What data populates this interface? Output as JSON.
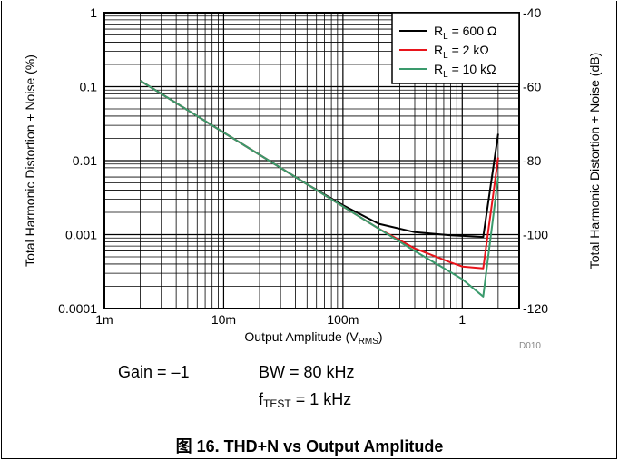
{
  "chart_data": {
    "type": "line",
    "title": "",
    "xlabel_main": "Output Amplitude (V",
    "xlabel_sub": "RMS",
    "xlabel_end": ")",
    "ylabel_left": "Total Harmonic Distortion + Noise (%)",
    "ylabel_right": "Total Harmonic Distortion + Noise (dB)",
    "x_scale": "log",
    "y_scale": "log",
    "xlim": [
      0.001,
      3
    ],
    "ylim": [
      0.0001,
      1
    ],
    "right_ylim": [
      -120,
      -40
    ],
    "grid": true,
    "legend_position": "top-right",
    "x_tick_labels": [
      "1m",
      "10m",
      "100m",
      "1"
    ],
    "y_tick_labels_left": [
      "1",
      "0.1",
      "0.01",
      "0.001",
      "0.0001"
    ],
    "y_tick_labels_right": [
      "-40",
      "-60",
      "-80",
      "-100",
      "-120"
    ],
    "series": [
      {
        "name_main": "R",
        "name_sub": "L",
        "name_tail": " = 600 Ω",
        "color": "#000000",
        "points": [
          [
            0.002,
            0.12
          ],
          [
            0.01,
            0.024
          ],
          [
            0.05,
            0.0048
          ],
          [
            0.1,
            0.0025
          ],
          [
            0.2,
            0.0014
          ],
          [
            0.4,
            0.00108
          ],
          [
            0.8,
            0.00098
          ],
          [
            1.5,
            0.00093
          ],
          [
            2.0,
            0.023
          ]
        ]
      },
      {
        "name_main": "R",
        "name_sub": "L",
        "name_tail": " = 2 kΩ",
        "color": "#e8141b",
        "points": [
          [
            0.002,
            0.12
          ],
          [
            0.01,
            0.024
          ],
          [
            0.05,
            0.0048
          ],
          [
            0.1,
            0.0024
          ],
          [
            0.2,
            0.0012
          ],
          [
            0.4,
            0.00065
          ],
          [
            0.8,
            0.00042
          ],
          [
            1.0,
            0.00037
          ],
          [
            1.5,
            0.00035
          ],
          [
            2.0,
            0.011
          ]
        ]
      },
      {
        "name_main": "R",
        "name_sub": "L",
        "name_tail": " = 10 kΩ",
        "color": "#3a9a6c",
        "points": [
          [
            0.002,
            0.12
          ],
          [
            0.01,
            0.024
          ],
          [
            0.05,
            0.0048
          ],
          [
            0.1,
            0.0024
          ],
          [
            0.2,
            0.0012
          ],
          [
            0.4,
            0.0006
          ],
          [
            0.8,
            0.00031
          ],
          [
            1.0,
            0.00025
          ],
          [
            1.5,
            0.000145
          ],
          [
            2.0,
            0.006
          ]
        ]
      }
    ],
    "code": "D010"
  },
  "conditions": {
    "gain": "Gain = –1",
    "bw": "BW = 80 kHz",
    "ftest_main": "f",
    "ftest_sub": "TEST",
    "ftest_tail": " = 1 kHz"
  },
  "caption": "图 16. THD+N vs Output Amplitude"
}
